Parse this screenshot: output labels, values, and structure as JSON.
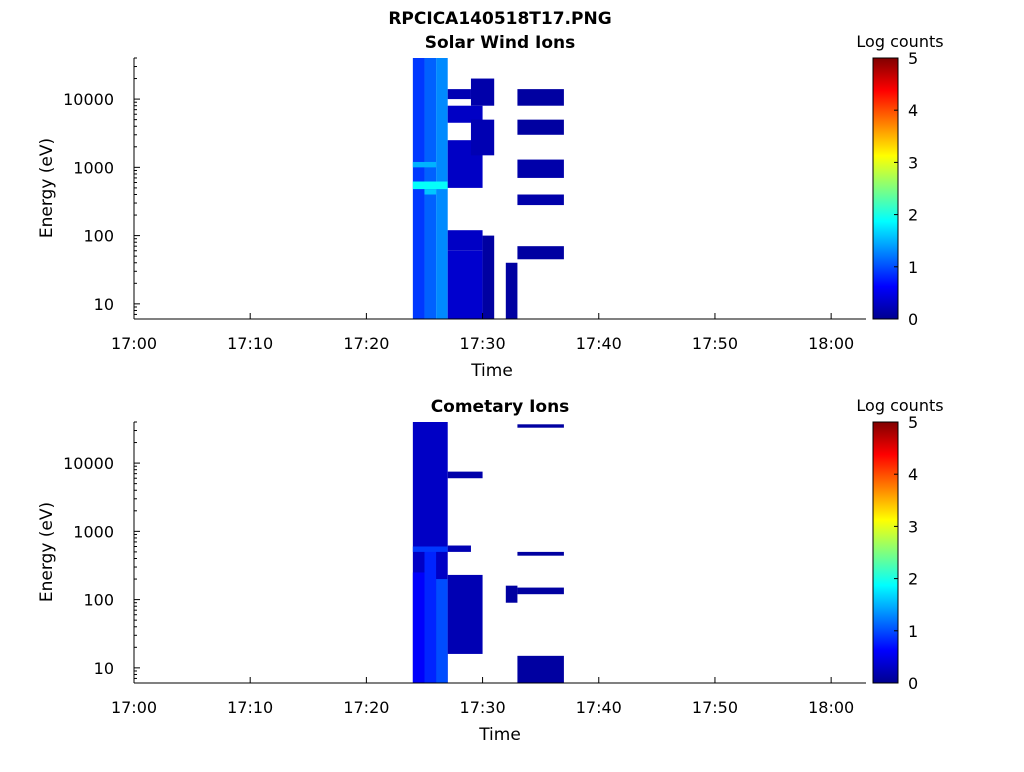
{
  "figure_title": "RPCICA140518T17.PNG",
  "colors": {
    "background": "#ffffff",
    "axis": "#000000",
    "colormap": "jet"
  },
  "chart_data": [
    {
      "type": "heatmap",
      "title": "Solar Wind Ions",
      "xlabel": "Time",
      "ylabel": "Energy (eV)",
      "yscale": "log",
      "xlim": [
        "17:00",
        "18:03"
      ],
      "ylim": [
        6,
        40000
      ],
      "xticks": [
        "17:00",
        "17:10",
        "17:20",
        "17:30",
        "17:40",
        "17:50",
        "18:00"
      ],
      "yticks": [
        {
          "value": 10,
          "label": "10"
        },
        {
          "value": 100,
          "label": "100"
        },
        {
          "value": 1000,
          "label": "1000"
        },
        {
          "value": 10000,
          "label": "10000"
        }
      ],
      "grid": false,
      "colorbar": {
        "label": "Log counts",
        "range": [
          0,
          5
        ],
        "ticks": [
          "0",
          "1",
          "2",
          "3",
          "4",
          "5"
        ]
      },
      "cells": [
        {
          "t0": "17:24",
          "t1": "17:25",
          "e0": 6,
          "e1": 40000,
          "v": 0.9
        },
        {
          "t0": "17:25",
          "t1": "17:26",
          "e0": 6,
          "e1": 40000,
          "v": 1.1
        },
        {
          "t0": "17:26",
          "t1": "17:27",
          "e0": 6,
          "e1": 40000,
          "v": 1.3
        },
        {
          "t0": "17:24",
          "t1": "17:27",
          "e0": 480,
          "e1": 620,
          "v": 1.9
        },
        {
          "t0": "17:25",
          "t1": "17:26",
          "e0": 400,
          "e1": 480,
          "v": 1.6
        },
        {
          "t0": "17:24",
          "t1": "17:26",
          "e0": 1000,
          "e1": 1200,
          "v": 1.5
        },
        {
          "t0": "17:27",
          "t1": "17:30",
          "e0": 6,
          "e1": 60,
          "v": 0.35
        },
        {
          "t0": "17:27",
          "t1": "17:30",
          "e0": 60,
          "e1": 120,
          "v": 0.3
        },
        {
          "t0": "17:27",
          "t1": "17:30",
          "e0": 500,
          "e1": 2500,
          "v": 0.3
        },
        {
          "t0": "17:27",
          "t1": "17:30",
          "e0": 4500,
          "e1": 8000,
          "v": 0.3
        },
        {
          "t0": "17:27",
          "t1": "17:29",
          "e0": 10000,
          "e1": 14000,
          "v": 0.2
        },
        {
          "t0": "17:30",
          "t1": "17:31",
          "e0": 6,
          "e1": 100,
          "v": 0.1
        },
        {
          "t0": "17:29",
          "t1": "17:31",
          "e0": 1500,
          "e1": 5000,
          "v": 0.2
        },
        {
          "t0": "17:29",
          "t1": "17:31",
          "e0": 8000,
          "e1": 20000,
          "v": 0.15
        },
        {
          "t0": "17:33",
          "t1": "17:37",
          "e0": 45,
          "e1": 70,
          "v": 0.1
        },
        {
          "t0": "17:33",
          "t1": "17:37",
          "e0": 280,
          "e1": 400,
          "v": 0.15
        },
        {
          "t0": "17:33",
          "t1": "17:37",
          "e0": 700,
          "e1": 1300,
          "v": 0.15
        },
        {
          "t0": "17:33",
          "t1": "17:37",
          "e0": 3000,
          "e1": 5000,
          "v": 0.1
        },
        {
          "t0": "17:33",
          "t1": "17:37",
          "e0": 8000,
          "e1": 14000,
          "v": 0.1
        },
        {
          "t0": "17:32",
          "t1": "17:33",
          "e0": 6,
          "e1": 40,
          "v": 0.1
        }
      ]
    },
    {
      "type": "heatmap",
      "title": "Cometary Ions",
      "xlabel": "Time",
      "ylabel": "Energy (eV)",
      "yscale": "log",
      "xlim": [
        "17:00",
        "18:03"
      ],
      "ylim": [
        6,
        40000
      ],
      "xticks": [
        "17:00",
        "17:10",
        "17:20",
        "17:30",
        "17:40",
        "17:50",
        "18:00"
      ],
      "yticks": [
        {
          "value": 10,
          "label": "10"
        },
        {
          "value": 100,
          "label": "100"
        },
        {
          "value": 1000,
          "label": "1000"
        },
        {
          "value": 10000,
          "label": "10000"
        }
      ],
      "grid": false,
      "colorbar": {
        "label": "Log counts",
        "range": [
          0,
          5
        ],
        "ticks": [
          "0",
          "1",
          "2",
          "3",
          "4",
          "5"
        ]
      },
      "cells": [
        {
          "t0": "17:24",
          "t1": "17:27",
          "e0": 6,
          "e1": 40000,
          "v": 0.3
        },
        {
          "t0": "17:24",
          "t1": "17:25",
          "e0": 6,
          "e1": 250,
          "v": 0.6
        },
        {
          "t0": "17:25",
          "t1": "17:26",
          "e0": 6,
          "e1": 600,
          "v": 0.8
        },
        {
          "t0": "17:26",
          "t1": "17:27",
          "e0": 6,
          "e1": 200,
          "v": 1.0
        },
        {
          "t0": "17:24",
          "t1": "17:27",
          "e0": 500,
          "e1": 600,
          "v": 0.9
        },
        {
          "t0": "17:27",
          "t1": "17:30",
          "e0": 16,
          "e1": 230,
          "v": 0.2
        },
        {
          "t0": "17:27",
          "t1": "17:29",
          "e0": 500,
          "e1": 620,
          "v": 0.2
        },
        {
          "t0": "17:27",
          "t1": "17:30",
          "e0": 6000,
          "e1": 7500,
          "v": 0.15
        },
        {
          "t0": "17:33",
          "t1": "17:37",
          "e0": 6,
          "e1": 15,
          "v": 0.1
        },
        {
          "t0": "17:33",
          "t1": "17:37",
          "e0": 120,
          "e1": 150,
          "v": 0.1
        },
        {
          "t0": "17:33",
          "t1": "17:37",
          "e0": 440,
          "e1": 500,
          "v": 0.1
        },
        {
          "t0": "17:33",
          "t1": "17:37",
          "e0": 33000,
          "e1": 37000,
          "v": 0.1
        },
        {
          "t0": "17:32",
          "t1": "17:33",
          "e0": 90,
          "e1": 160,
          "v": 0.1
        }
      ]
    }
  ]
}
